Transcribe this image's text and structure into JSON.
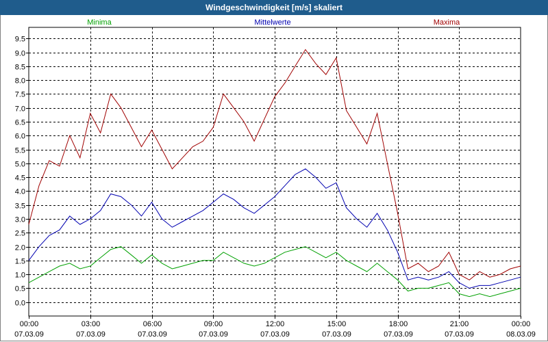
{
  "window": {
    "title": "Windgeschwindigkeit [m/s] skaliert"
  },
  "colors": {
    "min": "#00a000",
    "mean": "#0000b0",
    "max": "#a00000",
    "title_bg": "#1f5c8c"
  },
  "chart_data": {
    "type": "line",
    "title": "Windgeschwindigkeit [m/s] skaliert",
    "xlabel": "",
    "ylabel": "",
    "ylim": [
      -0.5,
      9.9
    ],
    "yticks": [
      "0.0",
      "0.5",
      "1.0",
      "1.5",
      "2.0",
      "2.5",
      "3.0",
      "3.5",
      "4.0",
      "4.5",
      "5.0",
      "5.5",
      "6.0",
      "6.5",
      "7.0",
      "7.5",
      "8.0",
      "8.5",
      "9.0",
      "9.5"
    ],
    "ytick_values": [
      0.0,
      0.5,
      1.0,
      1.5,
      2.0,
      2.5,
      3.0,
      3.5,
      4.0,
      4.5,
      5.0,
      5.5,
      6.0,
      6.5,
      7.0,
      7.5,
      8.0,
      8.5,
      9.0,
      9.5
    ],
    "xlim": [
      0,
      24
    ],
    "xticks": [
      {
        "hour": 0,
        "time": "00:00",
        "date": "07.03.09"
      },
      {
        "hour": 3,
        "time": "03:00",
        "date": "07.03.09"
      },
      {
        "hour": 6,
        "time": "06:00",
        "date": "07.03.09"
      },
      {
        "hour": 9,
        "time": "09:00",
        "date": "07.03.09"
      },
      {
        "hour": 12,
        "time": "12:00",
        "date": "07.03.09"
      },
      {
        "hour": 15,
        "time": "15:00",
        "date": "07.03.09"
      },
      {
        "hour": 18,
        "time": "18:00",
        "date": "07.03.09"
      },
      {
        "hour": 21,
        "time": "21:00",
        "date": "07.03.09"
      },
      {
        "hour": 24,
        "time": "00:00",
        "date": "08.03.09"
      }
    ],
    "legend": [
      "Minima",
      "Mittelwerte",
      "Maxima"
    ],
    "x": [
      0.0,
      0.5,
      1.0,
      1.5,
      2.0,
      2.5,
      3.0,
      3.5,
      4.0,
      4.5,
      5.0,
      5.5,
      6.0,
      6.5,
      7.0,
      7.5,
      8.0,
      8.5,
      9.0,
      9.5,
      10.0,
      10.5,
      11.0,
      11.5,
      12.0,
      12.5,
      13.0,
      13.5,
      14.0,
      14.5,
      15.0,
      15.5,
      16.0,
      16.5,
      17.0,
      17.5,
      18.0,
      18.5,
      19.0,
      19.5,
      20.0,
      20.5,
      21.0,
      21.5,
      22.0,
      22.5,
      23.0,
      23.5,
      24.0
    ],
    "series": [
      {
        "name": "Maxima",
        "values": [
          2.8,
          4.2,
          5.1,
          4.9,
          6.0,
          5.2,
          6.8,
          6.1,
          7.5,
          7.0,
          6.3,
          5.6,
          6.2,
          5.5,
          4.8,
          5.2,
          5.6,
          5.8,
          6.3,
          7.5,
          7.0,
          6.5,
          5.8,
          6.6,
          7.4,
          7.9,
          8.5,
          9.1,
          8.6,
          8.2,
          8.8,
          6.9,
          6.3,
          5.7,
          6.8,
          5.0,
          3.2,
          1.2,
          1.4,
          1.1,
          1.3,
          1.8,
          1.0,
          0.8,
          1.1,
          0.9,
          1.0,
          1.2,
          1.3
        ]
      },
      {
        "name": "Mittelwerte",
        "values": [
          1.5,
          2.0,
          2.4,
          2.6,
          3.1,
          2.8,
          3.0,
          3.3,
          3.9,
          3.8,
          3.5,
          3.1,
          3.6,
          3.0,
          2.7,
          2.9,
          3.1,
          3.3,
          3.6,
          3.9,
          3.7,
          3.4,
          3.2,
          3.5,
          3.8,
          4.2,
          4.6,
          4.8,
          4.5,
          4.1,
          4.3,
          3.4,
          3.0,
          2.7,
          3.2,
          2.6,
          1.8,
          0.8,
          0.9,
          0.8,
          0.9,
          1.1,
          0.7,
          0.5,
          0.6,
          0.6,
          0.7,
          0.8,
          0.9
        ]
      },
      {
        "name": "Minima",
        "values": [
          0.7,
          0.9,
          1.1,
          1.3,
          1.4,
          1.2,
          1.3,
          1.6,
          1.9,
          2.0,
          1.7,
          1.4,
          1.7,
          1.4,
          1.2,
          1.3,
          1.4,
          1.5,
          1.5,
          1.8,
          1.6,
          1.4,
          1.3,
          1.4,
          1.6,
          1.8,
          1.9,
          2.0,
          1.8,
          1.6,
          1.8,
          1.5,
          1.3,
          1.1,
          1.4,
          1.1,
          0.8,
          0.4,
          0.5,
          0.5,
          0.6,
          0.7,
          0.3,
          0.2,
          0.3,
          0.2,
          0.3,
          0.4,
          0.5
        ]
      }
    ]
  }
}
